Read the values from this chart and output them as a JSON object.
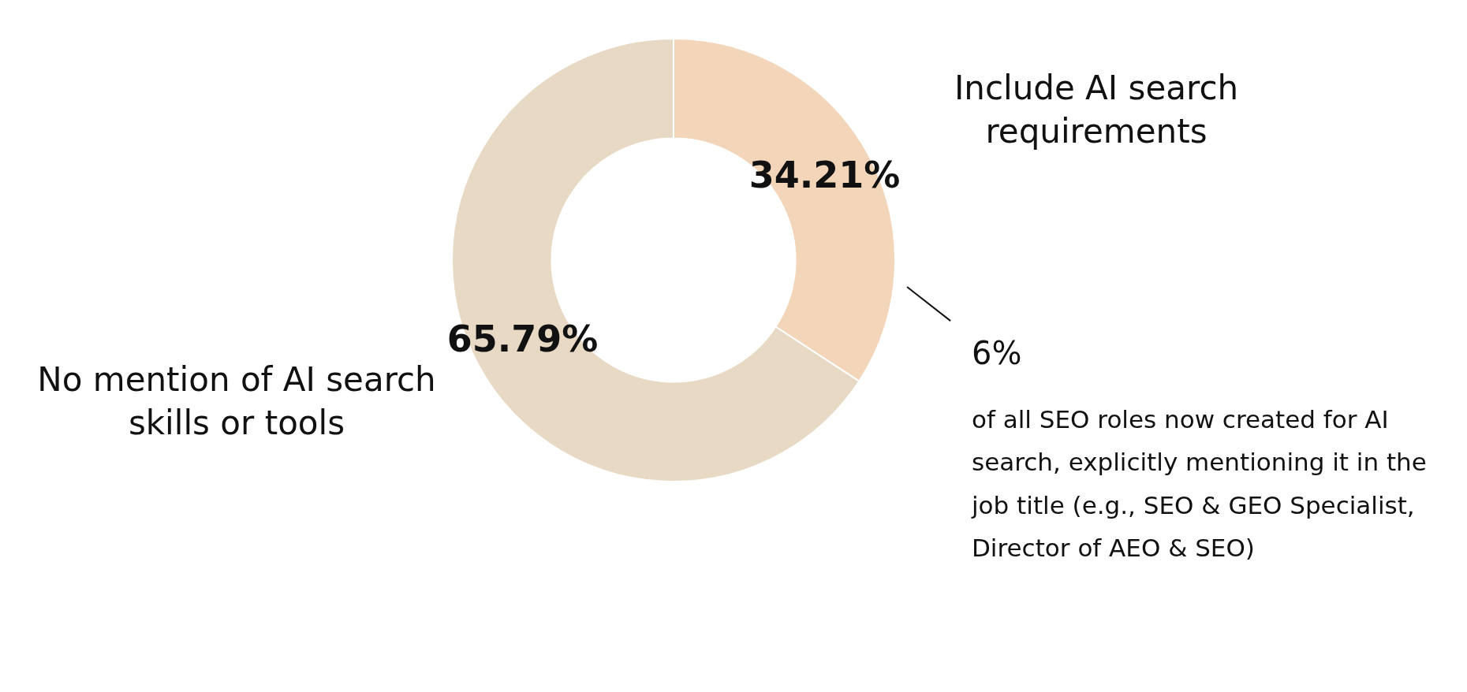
{
  "chart_data": {
    "type": "donut",
    "categories": [
      "Include AI search requirements",
      "No mention of AI search skills or tools"
    ],
    "values": [
      34.21,
      65.79
    ],
    "colors": [
      "#f3d5b9",
      "#e8d9c5"
    ],
    "value_labels": [
      "34.21%",
      "65.79%"
    ],
    "legend": false,
    "annotations": [
      "6%",
      "of all SEO roles now created for AI search, explicitly mentioning it in the job title (e.g., SEO & GEO Specialist, Director of AEO & SEO)"
    ]
  }
}
